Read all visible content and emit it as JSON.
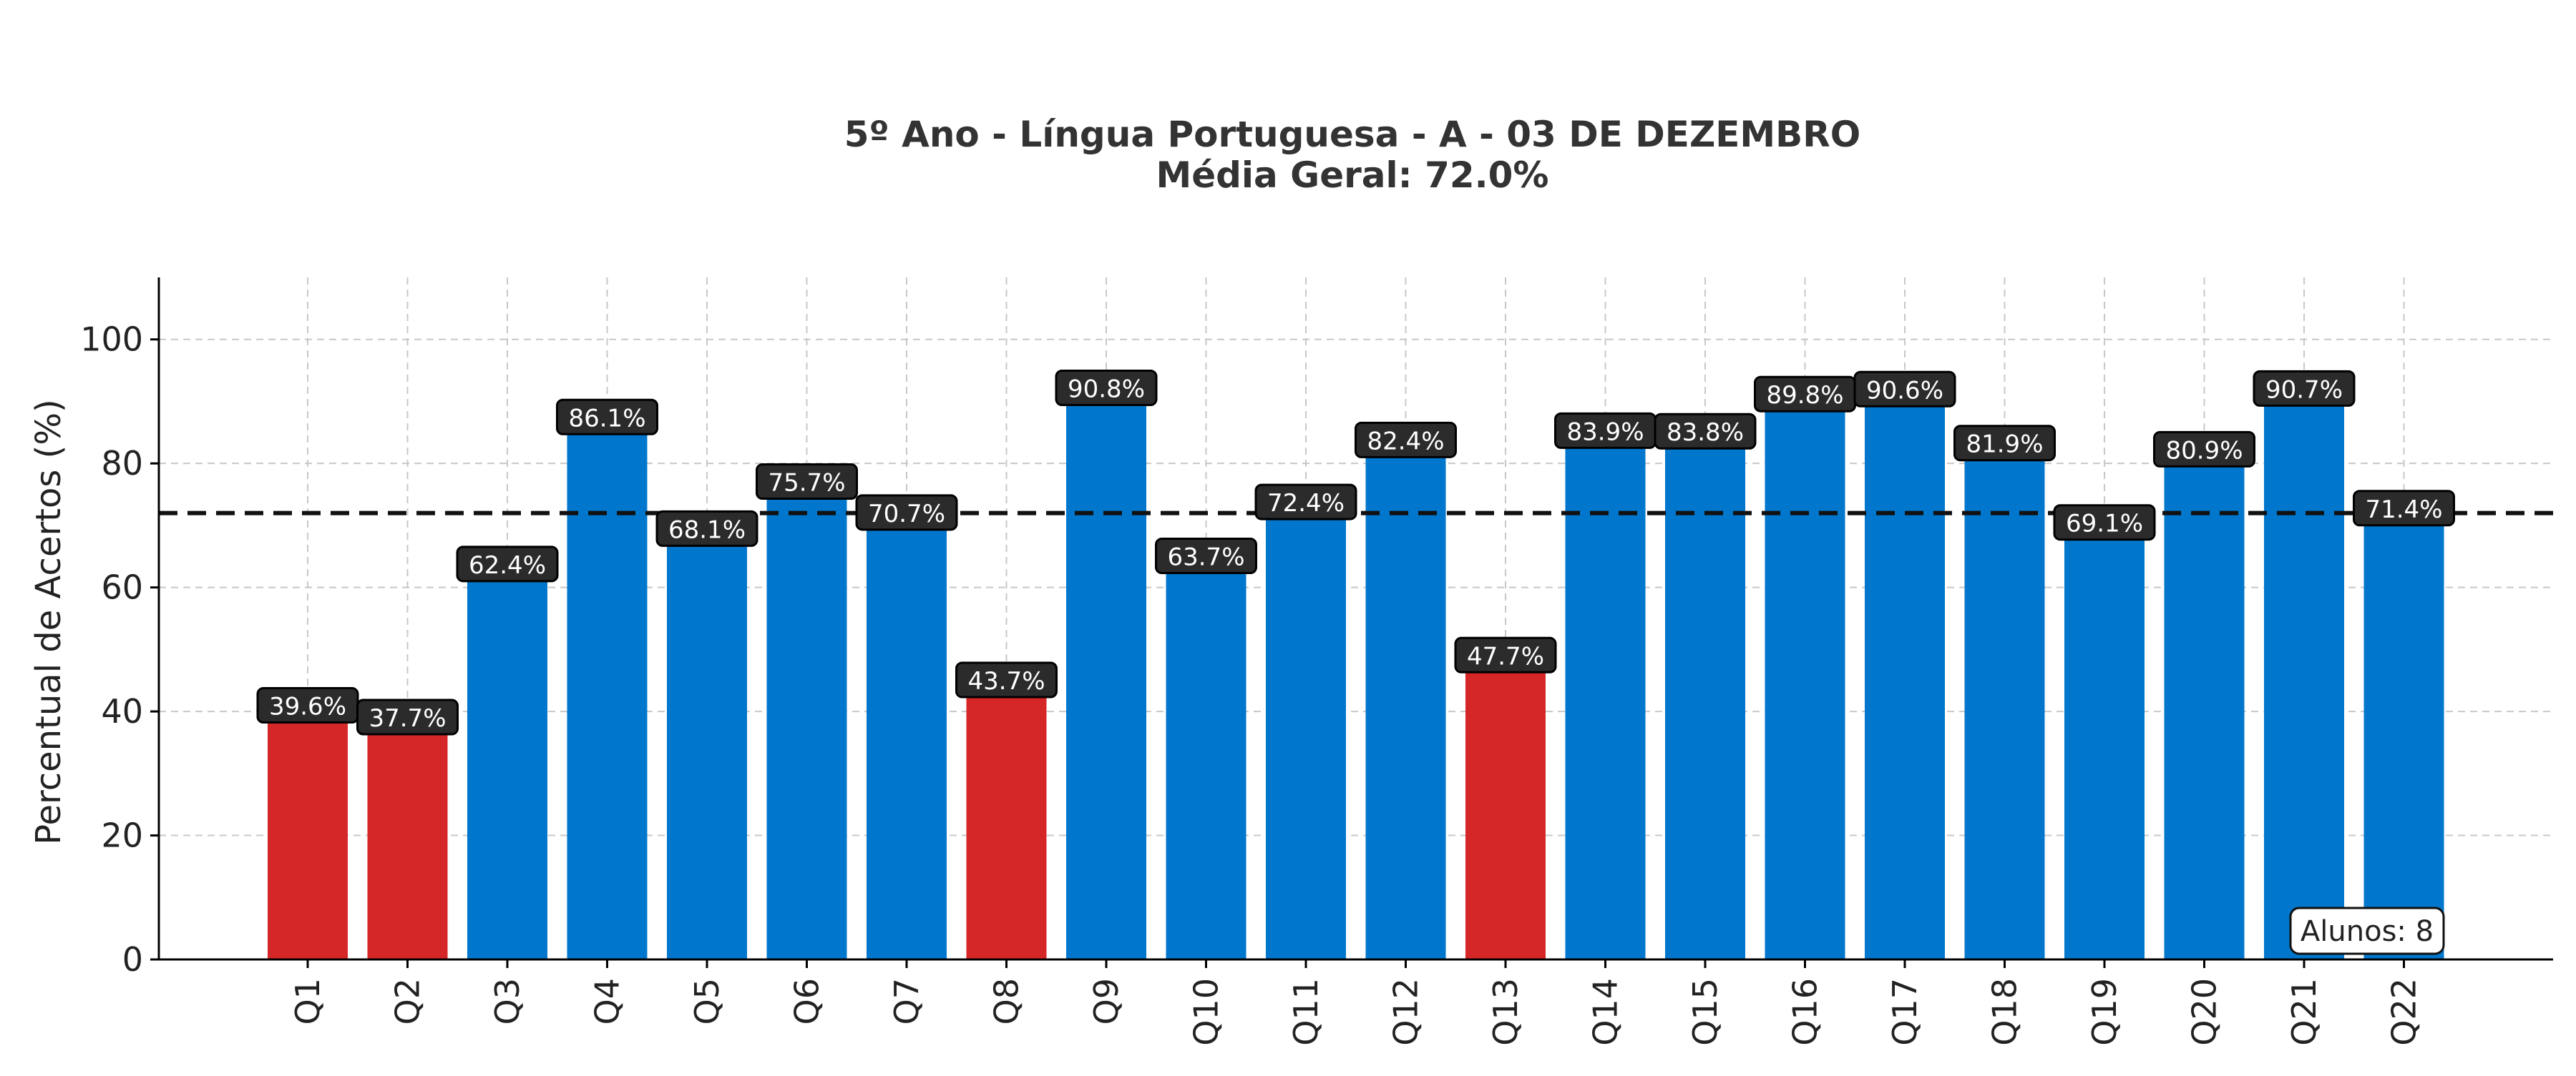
{
  "chart_data": {
    "type": "bar",
    "title": "5º Ano - Língua Portuguesa - A - 03 DE DEZEMBRO",
    "subtitle": "Média Geral: 72.0%",
    "xlabel": "",
    "ylabel": "Percentual de Acertos (%)",
    "ylim": [
      0,
      110
    ],
    "yticks": [
      0,
      20,
      40,
      60,
      80,
      100
    ],
    "grid": true,
    "categories": [
      "Q1",
      "Q2",
      "Q3",
      "Q4",
      "Q5",
      "Q6",
      "Q7",
      "Q8",
      "Q9",
      "Q10",
      "Q11",
      "Q12",
      "Q13",
      "Q14",
      "Q15",
      "Q16",
      "Q17",
      "Q18",
      "Q19",
      "Q20",
      "Q21",
      "Q22"
    ],
    "values": [
      39.6,
      37.7,
      62.4,
      86.1,
      68.1,
      75.7,
      70.7,
      43.7,
      90.8,
      63.7,
      72.4,
      82.4,
      47.7,
      83.9,
      83.8,
      89.8,
      90.6,
      81.9,
      69.1,
      80.9,
      90.7,
      71.4
    ],
    "data_labels": [
      "39.6%",
      "37.7%",
      "62.4%",
      "86.1%",
      "68.1%",
      "75.7%",
      "70.7%",
      "43.7%",
      "90.8%",
      "63.7%",
      "72.4%",
      "82.4%",
      "47.7%",
      "83.9%",
      "83.8%",
      "89.8%",
      "90.6%",
      "81.9%",
      "69.1%",
      "80.9%",
      "90.7%",
      "71.4%"
    ],
    "mean_line": 72.0,
    "low_threshold": 50,
    "colors": {
      "high": "#0077cc",
      "low": "#d62728",
      "mean_line": "#111111",
      "label_bg": "#2b2b2b"
    },
    "annotation": "Alunos: 8",
    "annotation_position": "bottom-right"
  }
}
